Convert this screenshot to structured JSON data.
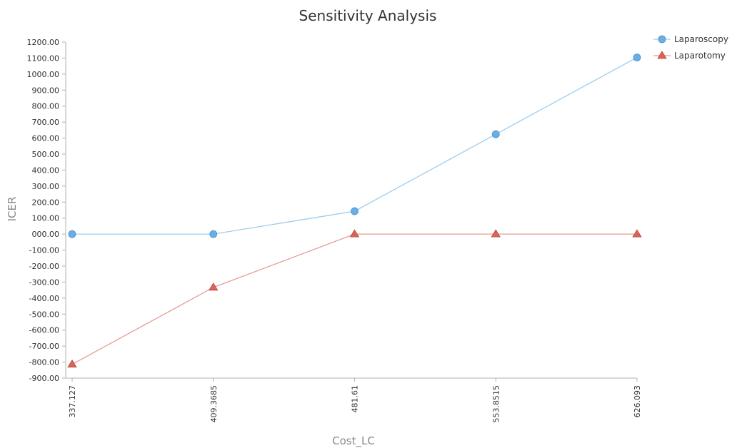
{
  "chart_data": {
    "type": "line",
    "title": "Sensitivity Analysis",
    "xlabel": "Cost_LC",
    "ylabel": "ICER",
    "categories": [
      "337.127",
      "409.3685",
      "481.61",
      "553.8515",
      "626.093"
    ],
    "ylim": [
      -900,
      1200
    ],
    "ytick_step": 100,
    "ytick_labels": [
      "1200.00",
      "1100.00",
      "1000.00",
      "900.00",
      "800.00",
      "700.00",
      "600.00",
      "500.00",
      "400.00",
      "300.00",
      "200.00",
      "100.00",
      "000.00",
      "-100.00",
      "-200.00",
      "-300.00",
      "-400.00",
      "-500.00",
      "-600.00",
      "-700.00",
      "-800.00",
      "-900.00"
    ],
    "grid": false,
    "legend_position": "top-right",
    "series": [
      {
        "name": "Laparoscopy",
        "marker": "circle",
        "color": "#6aaee3",
        "line_color": "#9dcdf0",
        "values": [
          0,
          0,
          143,
          624,
          1104
        ]
      },
      {
        "name": "Laparotomy",
        "marker": "triangle",
        "color": "#d9655a",
        "line_color": "#e59e98",
        "values": [
          -814,
          -333,
          0,
          0,
          0
        ]
      }
    ]
  }
}
